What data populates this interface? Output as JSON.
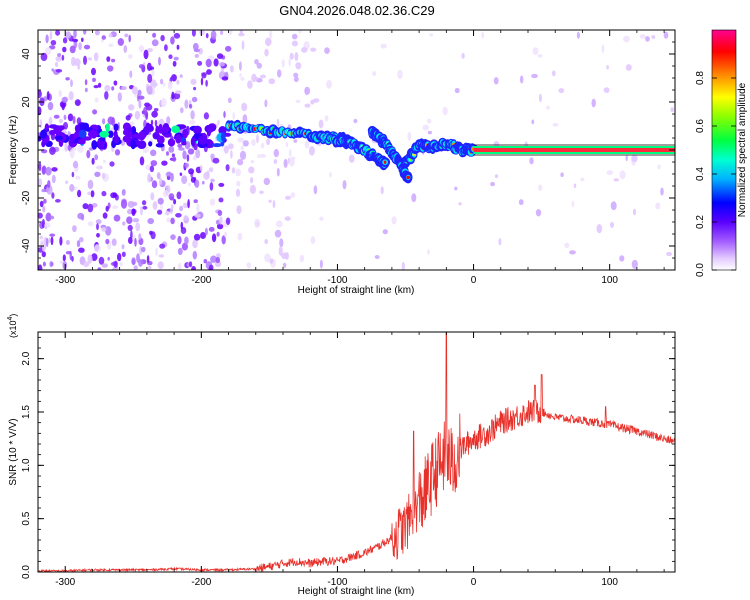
{
  "title": "GN04.2026.048.02.36.C29",
  "chart_data": [
    {
      "type": "heatmap",
      "xlabel": "Height of straight line (km)",
      "ylabel": "Frequency (Hz)",
      "xlim": [
        -320,
        148
      ],
      "ylim": [
        -50,
        50
      ],
      "xticks": [
        -300,
        -200,
        -100,
        0,
        100
      ],
      "yticks": [
        -40,
        -20,
        0,
        20,
        40
      ],
      "colorbar": {
        "label": "Normalized spectral amplitude",
        "range": [
          0.0,
          1.0
        ],
        "ticks": [
          0.0,
          0.2,
          0.4,
          0.6,
          0.8
        ],
        "colors": [
          "#ffffff",
          "#b36bff",
          "#6a00ff",
          "#0000ff",
          "#00c8ff",
          "#00ff60",
          "#8cff00",
          "#ffff00",
          "#ff8000",
          "#ff0000",
          "#ff0090"
        ]
      },
      "ridge": {
        "description_free": true,
        "segments": [
          {
            "x": [
              -180,
              -150,
              -120,
              -100,
              -90
            ],
            "y": [
              10,
              8,
              6,
              5,
              4
            ]
          },
          {
            "x": [
              -110,
              -90,
              -75,
              -65
            ],
            "y": [
              5,
              3,
              -2,
              -6
            ]
          },
          {
            "x": [
              -75,
              -65,
              -55,
              -48
            ],
            "y": [
              8,
              3,
              -5,
              -12
            ]
          },
          {
            "x": [
              -50,
              -40,
              -30,
              -20,
              -10,
              0
            ],
            "y": [
              -6,
              2,
              1,
              3,
              0,
              0
            ]
          },
          {
            "x": [
              0,
              148
            ],
            "y": [
              0,
              0
            ]
          }
        ]
      }
    },
    {
      "type": "line",
      "xlabel": "Height of straight line (km)",
      "ylabel": "SNR (10 * V/V)",
      "multiplier": "(x10",
      "multiplier_exp": "4",
      "multiplier_close": ")",
      "xlim": [
        -320,
        148
      ],
      "ylim": [
        0,
        2.25
      ],
      "xticks": [
        -300,
        -200,
        -100,
        0,
        100
      ],
      "yticks": [
        0.0,
        0.5,
        1.0,
        1.5,
        2.0
      ],
      "series": [
        {
          "name": "SNR",
          "color": "#e8302a",
          "x": [
            -320,
            -300,
            -280,
            -260,
            -240,
            -220,
            -200,
            -180,
            -160,
            -150,
            -140,
            -130,
            -120,
            -110,
            -100,
            -90,
            -80,
            -70,
            -60,
            -50,
            -45,
            -40,
            -35,
            -30,
            -25,
            -20,
            -15,
            -10,
            -5,
            0,
            10,
            20,
            30,
            40,
            50,
            60,
            80,
            100,
            120,
            148
          ],
          "values": [
            0.01,
            0.01,
            0.02,
            0.02,
            0.02,
            0.03,
            0.02,
            0.02,
            0.03,
            0.05,
            0.08,
            0.1,
            0.08,
            0.1,
            0.1,
            0.14,
            0.18,
            0.24,
            0.32,
            0.42,
            0.55,
            0.65,
            0.75,
            0.9,
            1.0,
            1.1,
            1.0,
            1.15,
            1.2,
            1.25,
            1.3,
            1.4,
            1.45,
            1.5,
            1.5,
            1.45,
            1.42,
            1.38,
            1.32,
            1.22
          ],
          "peaks": [
            {
              "x": -20,
              "y": 2.25
            },
            {
              "x": 50,
              "y": 1.85
            },
            {
              "x": 45,
              "y": 1.75
            },
            {
              "x": 97,
              "y": 1.55
            },
            {
              "x": -44,
              "y": 1.32
            }
          ]
        }
      ]
    }
  ]
}
